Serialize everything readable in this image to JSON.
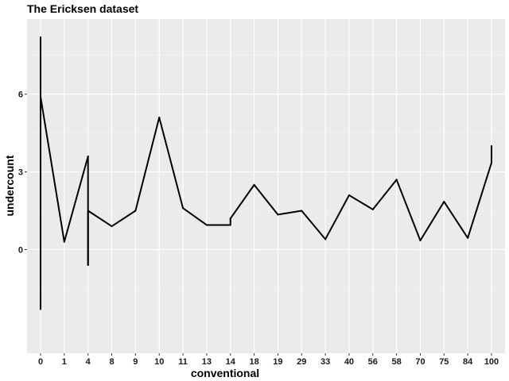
{
  "chart_data": {
    "type": "line",
    "title": "The Ericksen dataset",
    "xlabel": "conventional",
    "ylabel": "undercount",
    "categories": [
      "0",
      "1",
      "4",
      "8",
      "9",
      "10",
      "11",
      "13",
      "14",
      "18",
      "19",
      "29",
      "33",
      "40",
      "56",
      "58",
      "70",
      "75",
      "84",
      "100"
    ],
    "y_ticks": [
      0,
      3,
      6
    ],
    "ylim": [
      -4.0,
      8.9
    ],
    "grid": true,
    "series": [
      {
        "name": "undercount",
        "points": [
          {
            "x": "0",
            "y": -2.3
          },
          {
            "x": "0",
            "y": 8.2
          },
          {
            "x": "0",
            "y": 5.9
          },
          {
            "x": "1",
            "y": 0.3
          },
          {
            "x": "4",
            "y": 3.6
          },
          {
            "x": "4",
            "y": -0.6
          },
          {
            "x": "4",
            "y": 1.5
          },
          {
            "x": "8",
            "y": 0.9
          },
          {
            "x": "9",
            "y": 1.5
          },
          {
            "x": "10",
            "y": 5.1
          },
          {
            "x": "11",
            "y": 1.6
          },
          {
            "x": "13",
            "y": 0.95
          },
          {
            "x": "14",
            "y": 0.95
          },
          {
            "x": "14",
            "y": 1.2
          },
          {
            "x": "18",
            "y": 2.5
          },
          {
            "x": "19",
            "y": 1.35
          },
          {
            "x": "29",
            "y": 1.5
          },
          {
            "x": "33",
            "y": 0.4
          },
          {
            "x": "40",
            "y": 2.1
          },
          {
            "x": "56",
            "y": 1.55
          },
          {
            "x": "58",
            "y": 2.7
          },
          {
            "x": "70",
            "y": 0.35
          },
          {
            "x": "75",
            "y": 1.85
          },
          {
            "x": "84",
            "y": 0.45
          },
          {
            "x": "100",
            "y": 3.35
          },
          {
            "x": "100",
            "y": 4.0
          }
        ]
      }
    ]
  }
}
